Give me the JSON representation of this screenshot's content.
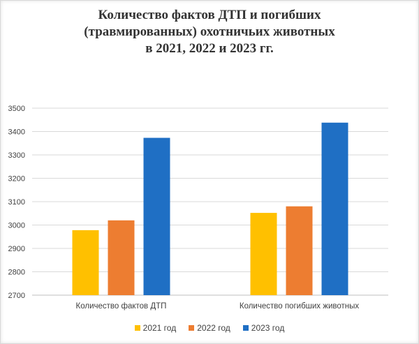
{
  "chart_data": {
    "type": "bar",
    "title_lines": [
      "Количество фактов ДТП и погибших",
      "(травмированных) охотничьих животных",
      "в 2021, 2022 и 2023 гг."
    ],
    "categories": [
      "Количество фактов ДТП",
      "Количество погибших животных"
    ],
    "series": [
      {
        "name": "2021 год",
        "values": [
          2978,
          3052
        ],
        "color": "#FFC000"
      },
      {
        "name": "2022 год",
        "values": [
          3020,
          3080
        ],
        "color": "#ED7D31"
      },
      {
        "name": "2023 год",
        "values": [
          3373,
          3438
        ],
        "color": "#1F6FC4"
      }
    ],
    "yticks": [
      "2700",
      "2800",
      "2900",
      "3000",
      "3100",
      "3200",
      "3300",
      "3400",
      "3500"
    ],
    "ylim": [
      2700,
      3500
    ],
    "grid": true,
    "legend_position": "bottom"
  }
}
